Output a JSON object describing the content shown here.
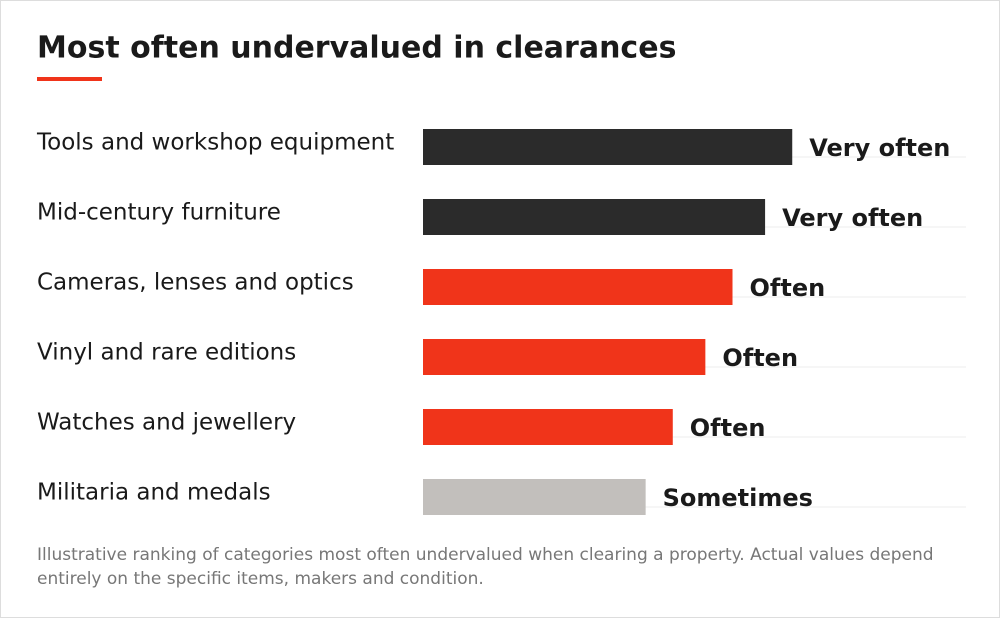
{
  "chart_data": {
    "type": "hbar",
    "title": "Most often undervalued in clearances",
    "categories": [
      "Tools and workshop equipment",
      "Mid-century furniture",
      "Cameras, lenses and optics",
      "Vinyl and rare editions",
      "Watches and jewellery",
      "Militaria and medals"
    ],
    "values": [
      68,
      63,
      57,
      52,
      46,
      41
    ],
    "value_labels": [
      "Very often",
      "Very often",
      "Often",
      "Often",
      "Often",
      "Sometimes"
    ],
    "colors": [
      "#2b2b2b",
      "#2b2b2b",
      "#f0341a",
      "#f0341a",
      "#f0341a",
      "#c2bfbc"
    ],
    "xlim": [
      0,
      100
    ],
    "note": "Illustrative ranking of categories most often undervalued when clearing a property. Actual values depend entirely on the specific items, makers and condition."
  }
}
